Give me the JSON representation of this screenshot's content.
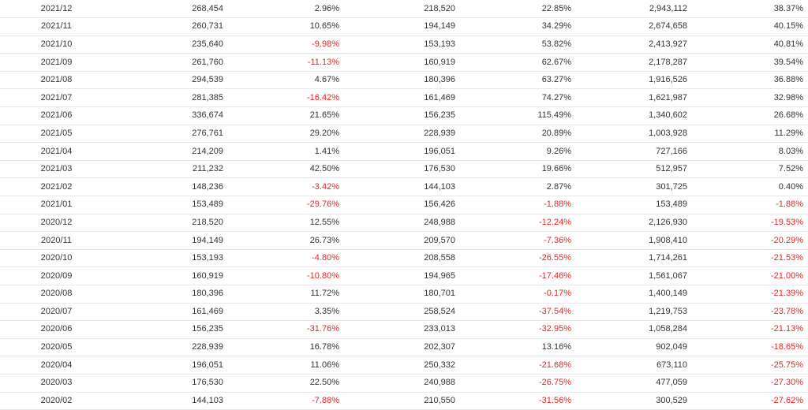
{
  "colors": {
    "negative": "#ee2222",
    "text": "#333333",
    "row_border": "#e8e8e8"
  },
  "rows": [
    [
      "2021/12",
      "268,454",
      "2.96%",
      "218,520",
      "22.85%",
      "2,943,112",
      "38.37%"
    ],
    [
      "2021/11",
      "260,731",
      "10.65%",
      "194,149",
      "34.29%",
      "2,674,658",
      "40.15%"
    ],
    [
      "2021/10",
      "235,640",
      "-9.98%",
      "153,193",
      "53.82%",
      "2,413,927",
      "40.81%"
    ],
    [
      "2021/09",
      "261,760",
      "-11.13%",
      "160,919",
      "62.67%",
      "2,178,287",
      "39.54%"
    ],
    [
      "2021/08",
      "294,539",
      "4.67%",
      "180,396",
      "63.27%",
      "1,916,526",
      "36.88%"
    ],
    [
      "2021/07",
      "281,385",
      "-16.42%",
      "161,469",
      "74.27%",
      "1,621,987",
      "32.98%"
    ],
    [
      "2021/06",
      "336,674",
      "21.65%",
      "156,235",
      "115.49%",
      "1,340,602",
      "26.68%"
    ],
    [
      "2021/05",
      "276,761",
      "29.20%",
      "228,939",
      "20.89%",
      "1,003,928",
      "11.29%"
    ],
    [
      "2021/04",
      "214,209",
      "1.41%",
      "196,051",
      "9.26%",
      "727,166",
      "8.03%"
    ],
    [
      "2021/03",
      "211,232",
      "42.50%",
      "176,530",
      "19.66%",
      "512,957",
      "7.52%"
    ],
    [
      "2021/02",
      "148,236",
      "-3.42%",
      "144,103",
      "2.87%",
      "301,725",
      "0.40%"
    ],
    [
      "2021/01",
      "153,489",
      "-29.76%",
      "156,426",
      "-1.88%",
      "153,489",
      "-1.88%"
    ],
    [
      "2020/12",
      "218,520",
      "12.55%",
      "248,988",
      "-12.24%",
      "2,126,930",
      "-19.53%"
    ],
    [
      "2020/11",
      "194,149",
      "26.73%",
      "209,570",
      "-7.36%",
      "1,908,410",
      "-20.29%"
    ],
    [
      "2020/10",
      "153,193",
      "-4.80%",
      "208,558",
      "-26.55%",
      "1,714,261",
      "-21.53%"
    ],
    [
      "2020/09",
      "160,919",
      "-10.80%",
      "194,965",
      "-17.46%",
      "1,561,067",
      "-21.00%"
    ],
    [
      "2020/08",
      "180,396",
      "11.72%",
      "180,701",
      "-0.17%",
      "1,400,149",
      "-21.39%"
    ],
    [
      "2020/07",
      "161,469",
      "3.35%",
      "258,524",
      "-37.54%",
      "1,219,753",
      "-23.78%"
    ],
    [
      "2020/06",
      "156,235",
      "-31.76%",
      "233,013",
      "-32.95%",
      "1,058,284",
      "-21.13%"
    ],
    [
      "2020/05",
      "228,939",
      "16.78%",
      "202,307",
      "13.16%",
      "902,049",
      "-18.65%"
    ],
    [
      "2020/04",
      "196,051",
      "11.06%",
      "250,332",
      "-21.68%",
      "673,110",
      "-25.75%"
    ],
    [
      "2020/03",
      "176,530",
      "22.50%",
      "240,988",
      "-26.75%",
      "477,059",
      "-27.30%"
    ],
    [
      "2020/02",
      "144,103",
      "-7.88%",
      "210,550",
      "-31.56%",
      "300,529",
      "-27.62%"
    ]
  ]
}
